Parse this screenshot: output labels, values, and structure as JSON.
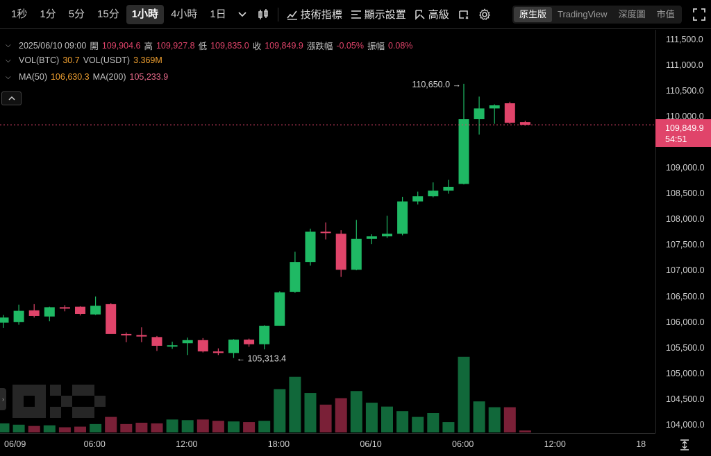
{
  "toolbar": {
    "timeframes": [
      "1秒",
      "1分",
      "5分",
      "15分",
      "1小時",
      "4小時",
      "1日"
    ],
    "active_timeframe": "1小時",
    "indicators_label": "技術指標",
    "display_settings_label": "顯示設置",
    "advanced_label": "高級",
    "views": [
      "原生版",
      "TradingView",
      "深度圖",
      "市值"
    ],
    "active_view": "原生版"
  },
  "ohlc": {
    "datetime": "2025/06/10 09:00",
    "open_label": "開",
    "open": "109,904.6",
    "high_label": "高",
    "high": "109,927.8",
    "low_label": "低",
    "low": "109,835.0",
    "close_label": "收",
    "close": "109,849.9",
    "change_label": "漲跌幅",
    "change": "-0.05%",
    "amplitude_label": "振幅",
    "amplitude": "0.08%"
  },
  "volume": {
    "btc_label": "VOL(BTC)",
    "btc": "30.7",
    "usdt_label": "VOL(USDT)",
    "usdt": "3.369M"
  },
  "ma": {
    "ma50_label": "MA(50)",
    "ma50": "106,630.3",
    "ma200_label": "MA(200)",
    "ma200": "105,233.9"
  },
  "last_price": {
    "price": "109,849.9",
    "countdown": "54:51"
  },
  "colors": {
    "up": "#1fb964",
    "down": "#e0446a",
    "background": "#000000"
  },
  "chart_data": {
    "type": "candlestick",
    "y_range": [
      103850,
      111700
    ],
    "price_ticks": [
      "111,500.0",
      "111,000.0",
      "110,500.0",
      "110,000.0",
      "109,500.0",
      "109,000.0",
      "108,500.0",
      "108,000.0",
      "107,500.0",
      "107,000.0",
      "106,500.0",
      "106,000.0",
      "105,500.0",
      "105,000.0",
      "104,500.0",
      "104,000.0"
    ],
    "price_tick_values": [
      111500,
      111000,
      110500,
      110000,
      109500,
      109000,
      108500,
      108000,
      107500,
      107000,
      106500,
      106000,
      105500,
      105000,
      104500,
      104000
    ],
    "time_ticks": [
      "06/09",
      "06:00",
      "12:00",
      "18:00",
      "06/10",
      "06:00",
      "12:00",
      "18"
    ],
    "time_tick_index": [
      0,
      6,
      12,
      18,
      24,
      30,
      36,
      42
    ],
    "high_annotation": "110,650.0",
    "low_annotation": "105,313.4",
    "candles": [
      {
        "o": 106000,
        "h": 106150,
        "l": 105900,
        "c": 106100
      },
      {
        "o": 106010,
        "h": 106350,
        "l": 105960,
        "c": 106230
      },
      {
        "o": 106240,
        "h": 106360,
        "l": 106100,
        "c": 106130
      },
      {
        "o": 106120,
        "h": 106310,
        "l": 106030,
        "c": 106300
      },
      {
        "o": 106300,
        "h": 106340,
        "l": 106220,
        "c": 106290
      },
      {
        "o": 106310,
        "h": 106320,
        "l": 106140,
        "c": 106170
      },
      {
        "o": 106160,
        "h": 106510,
        "l": 106150,
        "c": 106330
      },
      {
        "o": 106360,
        "h": 106380,
        "l": 105810,
        "c": 105780
      },
      {
        "o": 105780,
        "h": 105810,
        "l": 105620,
        "c": 105760
      },
      {
        "o": 105760,
        "h": 105910,
        "l": 105620,
        "c": 105730
      },
      {
        "o": 105720,
        "h": 105740,
        "l": 105450,
        "c": 105550
      },
      {
        "o": 105550,
        "h": 105630,
        "l": 105490,
        "c": 105560
      },
      {
        "o": 105600,
        "h": 105710,
        "l": 105370,
        "c": 105660
      },
      {
        "o": 105660,
        "h": 105700,
        "l": 105420,
        "c": 105440
      },
      {
        "o": 105440,
        "h": 105500,
        "l": 105370,
        "c": 105410
      },
      {
        "o": 105410,
        "h": 105680,
        "l": 105313.4,
        "c": 105670
      },
      {
        "o": 105670,
        "h": 105690,
        "l": 105530,
        "c": 105580
      },
      {
        "o": 105580,
        "h": 105950,
        "l": 105480,
        "c": 105940
      },
      {
        "o": 105940,
        "h": 106610,
        "l": 105940,
        "c": 106590
      },
      {
        "o": 106600,
        "h": 107380,
        "l": 106580,
        "c": 107180
      },
      {
        "o": 107180,
        "h": 107830,
        "l": 107110,
        "c": 107770
      },
      {
        "o": 107770,
        "h": 107950,
        "l": 107620,
        "c": 107760
      },
      {
        "o": 107730,
        "h": 107800,
        "l": 106890,
        "c": 107030
      },
      {
        "o": 107030,
        "h": 108000,
        "l": 107020,
        "c": 107630
      },
      {
        "o": 107630,
        "h": 107720,
        "l": 107530,
        "c": 107680
      },
      {
        "o": 107680,
        "h": 108080,
        "l": 107650,
        "c": 107730
      },
      {
        "o": 107730,
        "h": 108450,
        "l": 107700,
        "c": 108360
      },
      {
        "o": 108360,
        "h": 108550,
        "l": 108300,
        "c": 108460
      },
      {
        "o": 108460,
        "h": 108730,
        "l": 108440,
        "c": 108570
      },
      {
        "o": 108570,
        "h": 108780,
        "l": 108510,
        "c": 108640
      },
      {
        "o": 108700,
        "h": 110650,
        "l": 108690,
        "c": 109960
      },
      {
        "o": 109960,
        "h": 110400,
        "l": 109660,
        "c": 110170
      },
      {
        "o": 110170,
        "h": 110250,
        "l": 109870,
        "c": 110230
      },
      {
        "o": 110270,
        "h": 110300,
        "l": 109870,
        "c": 109890
      },
      {
        "o": 109904.6,
        "h": 109927.8,
        "l": 109835,
        "c": 109849.9
      }
    ],
    "volumes": [
      1.4,
      1.2,
      1.0,
      1.1,
      0.8,
      0.9,
      1.3,
      2.4,
      1.3,
      1.5,
      1.4,
      2.0,
      1.9,
      2.0,
      1.8,
      1.7,
      1.6,
      1.8,
      6.7,
      8.6,
      6.1,
      4.3,
      5.3,
      6.4,
      4.6,
      4.0,
      3.3,
      2.4,
      3.0,
      1.6,
      11.7,
      4.8,
      3.9,
      3.9,
      0.3
    ],
    "volume_max": 12
  }
}
